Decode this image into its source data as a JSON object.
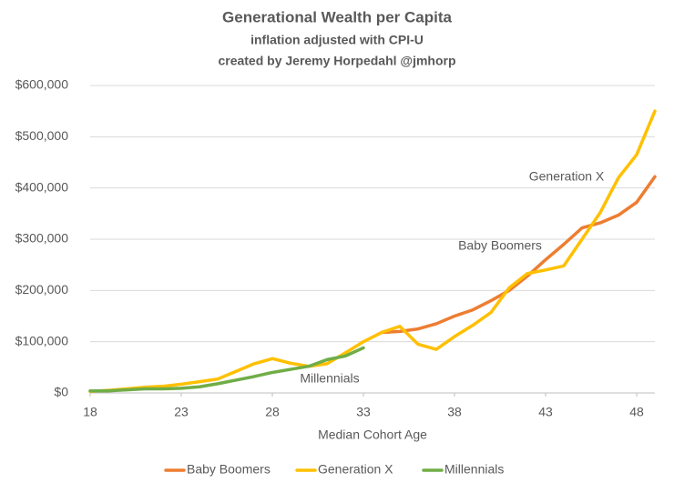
{
  "chart_data": {
    "type": "line",
    "title": "Generational Wealth per Capita",
    "subtitle": [
      "inflation adjusted  with CPI-U",
      "created by Jeremy Horpedahl  @jmhorp"
    ],
    "x_label": "Median Cohort Age",
    "x": [
      18,
      19,
      20,
      21,
      22,
      23,
      24,
      25,
      26,
      27,
      28,
      29,
      30,
      31,
      32,
      33,
      34,
      35,
      36,
      37,
      38,
      39,
      40,
      41,
      42,
      43,
      44,
      45,
      46,
      47,
      48,
      49
    ],
    "xlim": [
      18,
      49
    ],
    "xticks": [
      18,
      23,
      28,
      33,
      38,
      43,
      48
    ],
    "ylim": [
      0,
      600000
    ],
    "yticks": [
      {
        "value": 0,
        "label": "$0"
      },
      {
        "value": 100000,
        "label": "$100,000"
      },
      {
        "value": 200000,
        "label": "$200,000"
      },
      {
        "value": 300000,
        "label": "$300,000"
      },
      {
        "value": 400000,
        "label": "$400,000"
      },
      {
        "value": 500000,
        "label": "$500,000"
      },
      {
        "value": 600000,
        "label": "$600,000"
      }
    ],
    "grid": true,
    "legend": "bottom",
    "series": [
      {
        "name": "Baby Boomers",
        "color": "#ED7D31",
        "values": [
          null,
          null,
          null,
          null,
          null,
          null,
          null,
          null,
          null,
          null,
          null,
          null,
          null,
          null,
          null,
          null,
          118000,
          120000,
          125000,
          135000,
          150000,
          162000,
          180000,
          200000,
          228000,
          260000,
          290000,
          322000,
          332000,
          347000,
          372000,
          422000
        ]
      },
      {
        "name": "Generation X",
        "color": "#FFC000",
        "values": [
          3000,
          5000,
          8000,
          11000,
          13000,
          17000,
          22000,
          27000,
          42000,
          57000,
          67000,
          58000,
          52000,
          57000,
          78000,
          100000,
          118000,
          130000,
          95000,
          85000,
          110000,
          132000,
          157000,
          205000,
          233000,
          240000,
          248000,
          300000,
          352000,
          420000,
          465000,
          550000
        ]
      },
      {
        "name": "Millennials",
        "color": "#70AD47",
        "values": [
          4000,
          4000,
          6000,
          8000,
          8000,
          9000,
          12000,
          18000,
          25000,
          32000,
          40000,
          46000,
          52000,
          65000,
          72000,
          88000,
          null,
          null,
          null,
          null,
          null,
          null,
          null,
          null,
          null,
          null,
          null,
          null,
          null,
          null,
          null,
          null
        ]
      }
    ],
    "annotations": [
      "Generation X",
      "Baby Boomers",
      "Millennials"
    ]
  }
}
